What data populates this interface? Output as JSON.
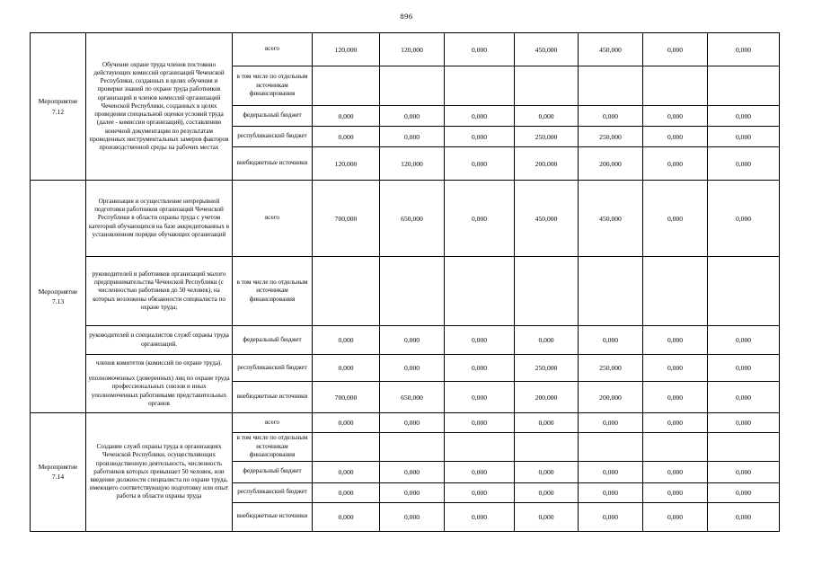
{
  "page_number": "896",
  "table": {
    "groups": [
      {
        "activity": "Мероприятие 7.12",
        "description_cells": [
          {
            "rowspan": 5,
            "paragraphs": [
              "Обучение охране труда членов постоянно действующих комиссий организаций Чеченской Республики, созданных в целях обучения и проверки знаний по охране труда работников организаций и членов комиссий организаций Чеченской Республики, созданных в целях проведения специальной оценки условий труда (далее - комиссии организаций), составлению конечной документации по результатам проведенных инструментальных замеров факторов производственной среды на рабочих местах"
            ]
          }
        ],
        "rows": [
          {
            "label": "всего",
            "values": [
              "120,000",
              "120,000",
              "0,000",
              "450,000",
              "450,000",
              "0,000",
              "0,000"
            ]
          },
          {
            "label": "в том числе по отдельным источникам финансирования",
            "values": [
              "",
              "",
              "",
              "",
              "",
              "",
              ""
            ]
          },
          {
            "label": "федеральный бюджет",
            "values": [
              "0,000",
              "0,000",
              "0,000",
              "0,000",
              "0,000",
              "0,000",
              "0,000"
            ]
          },
          {
            "label": "республиканский бюджет",
            "values": [
              "0,000",
              "0,000",
              "0,000",
              "250,000",
              "250,000",
              "0,000",
              "0,000"
            ]
          },
          {
            "label": "внебюджетные источники",
            "values": [
              "120,000",
              "120,000",
              "0,000",
              "200,000",
              "200,000",
              "0,000",
              "0,000"
            ]
          }
        ]
      },
      {
        "activity": "Мероприятие 7.13",
        "description_cells": [
          {
            "rowspan": 1,
            "paragraphs": [
              "Организация и осуществление непрерывной подготовки работников организаций Чеченской Республики в области охраны труда с учетом категорий обучающихся на базе аккредитованных в установленном порядке обучающих организаций"
            ]
          },
          {
            "rowspan": 1,
            "paragraphs": [
              "руководителей и работников организаций малого предпринимательства Чеченской Республики (с численностью работников до 50 человек), на которых возложены обязанности специалиста по охране труда;"
            ]
          },
          {
            "rowspan": 1,
            "paragraphs": [
              "руководителей и специалистов служб охраны труда организаций."
            ]
          },
          {
            "rowspan": 2,
            "paragraphs": [
              "членов комитетов (комиссий по охране труда).",
              "уполномоченных (доверенных) лиц по охране труда профессиональных союзов и иных уполномоченных работниками представительных органов"
            ]
          }
        ],
        "rows": [
          {
            "label": "всего",
            "values": [
              "700,000",
              "650,000",
              "0,000",
              "450,000",
              "450,000",
              "0,000",
              "0,000"
            ]
          },
          {
            "label": "в том числе по отдельным источникам финансирования",
            "values": [
              "",
              "",
              "",
              "",
              "",
              "",
              ""
            ]
          },
          {
            "label": "федеральный бюджет",
            "values": [
              "0,000",
              "0,000",
              "0,000",
              "0,000",
              "0,000",
              "0,000",
              "0,000"
            ]
          },
          {
            "label": "республиканский бюджет",
            "values": [
              "0,000",
              "0,000",
              "0,000",
              "250,000",
              "250,000",
              "0,000",
              "0,000"
            ]
          },
          {
            "label": "внебюджетные источники",
            "values": [
              "700,000",
              "650,000",
              "0,000",
              "200,000",
              "200,000",
              "0,000",
              "0,000"
            ]
          }
        ]
      },
      {
        "activity": "Мероприятие 7.14",
        "description_cells": [
          {
            "rowspan": 5,
            "paragraphs": [
              "Создание служб охраны труда в организациях Чеченской Республики, осуществляющих производственную деятельность, численность работников которых превышает 50 человек, или введение должности специалиста по охране труда, имеющего соответствующую подготовку или опыт работы в области охраны труда"
            ]
          }
        ],
        "rows": [
          {
            "label": "всего",
            "values": [
              "0,000",
              "0,000",
              "0,000",
              "0,000",
              "0,000",
              "0,000",
              "0,000"
            ]
          },
          {
            "label": "в том числе по отдельным источникам финансирования",
            "values": [
              "",
              "",
              "",
              "",
              "",
              "",
              ""
            ]
          },
          {
            "label": "федеральный бюджет",
            "values": [
              "0,000",
              "0,000",
              "0,000",
              "0,000",
              "0,000",
              "0,000",
              "0,000"
            ]
          },
          {
            "label": "республиканский бюджет",
            "values": [
              "0,000",
              "0,000",
              "0,000",
              "0,000",
              "0,000",
              "0,000",
              "0,000"
            ]
          },
          {
            "label": "внебюджетные источники",
            "values": [
              "0,000",
              "0,000",
              "0,000",
              "0,000",
              "0,000",
              "0,000",
              "0,000"
            ]
          }
        ]
      }
    ]
  }
}
